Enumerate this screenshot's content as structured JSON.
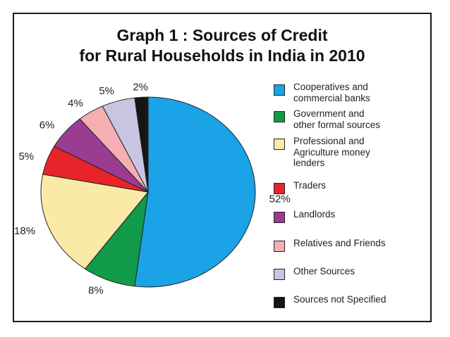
{
  "chart_data": {
    "type": "pie",
    "title": "Graph 1 : Sources of Credit for Rural Households in India in 2010",
    "title_lines": [
      "Graph 1 : Sources of Credit",
      "for Rural Households in India in 2010"
    ],
    "legend_position": "right",
    "slices": [
      {
        "label": "Cooperatives and\ncommercial banks",
        "value": 52,
        "value_label": "52%",
        "color": "#1aa3e6"
      },
      {
        "label": "Government and\nother formal sources",
        "value": 8,
        "value_label": "8%",
        "color": "#119a48"
      },
      {
        "label": "Professional and\nAgriculture money\nlenders",
        "value": 18,
        "value_label": "18%",
        "color": "#fbe9a8"
      },
      {
        "label": "Traders",
        "value": 5,
        "value_label": "5%",
        "color": "#e8242a"
      },
      {
        "label": "Landlords",
        "value": 6,
        "value_label": "6%",
        "color": "#9a3d92"
      },
      {
        "label": "Relatives and Friends",
        "value": 4,
        "value_label": "4%",
        "color": "#f5aeb2"
      },
      {
        "label": "Other Sources",
        "value": 5,
        "value_label": "5%",
        "color": "#c8c5e2"
      },
      {
        "label": "Sources not Specified",
        "value": 2,
        "value_label": "2%",
        "color": "#151515"
      }
    ]
  }
}
